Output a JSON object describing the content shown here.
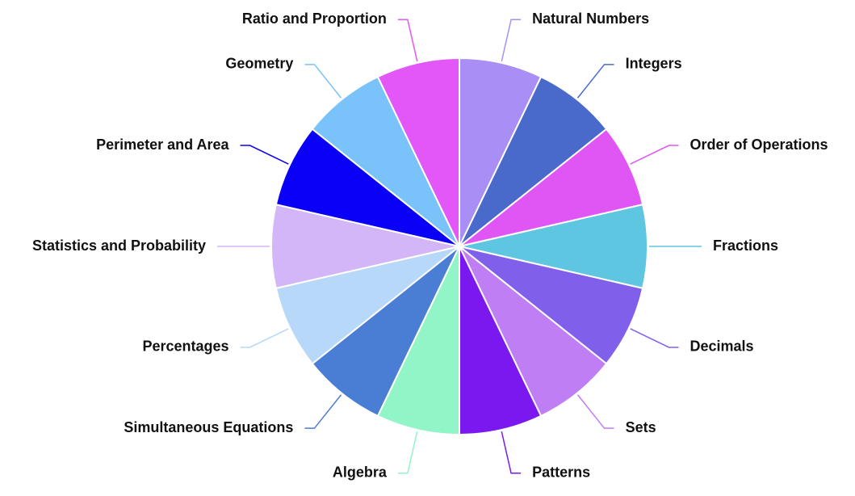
{
  "chart_data": {
    "type": "pie",
    "categories": [
      "Natural Numbers",
      "Integers",
      "Order of Operations",
      "Fractions",
      "Decimals",
      "Sets",
      "Patterns",
      "Algebra",
      "Simultaneous Equations",
      "Percentages",
      "Statistics and Probability",
      "Perimeter and Area",
      "Geometry",
      "Ratio and Proportion"
    ],
    "values": [
      1,
      1,
      1,
      1,
      1,
      1,
      1,
      1,
      1,
      1,
      1,
      1,
      1,
      1
    ],
    "colors": [
      "#a98ef5",
      "#4a6acb",
      "#e056f5",
      "#5ec6e0",
      "#8060ea",
      "#c07ef5",
      "#7a18ef",
      "#92f5c8",
      "#4a7dd4",
      "#b8d8fa",
      "#d2b6f7",
      "#0a00f5",
      "#79c2fa",
      "#e356f7"
    ]
  }
}
